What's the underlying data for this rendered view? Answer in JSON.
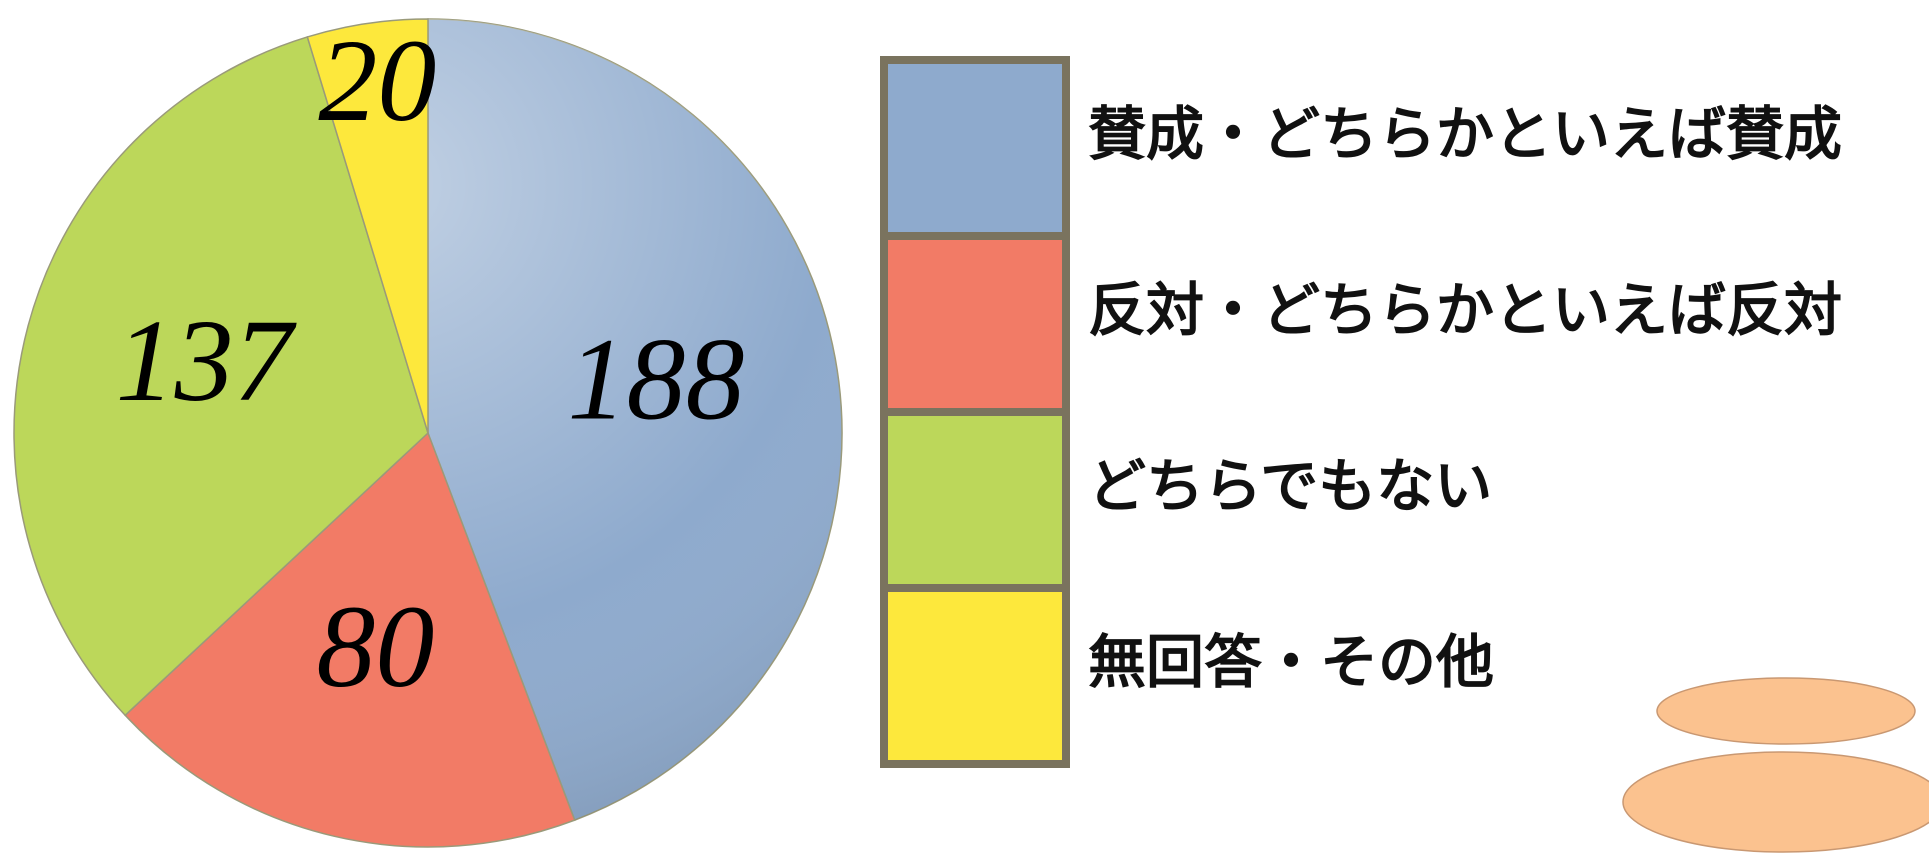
{
  "chart_data": {
    "type": "pie",
    "categories": [
      "賛成・どちらかといえば賛成",
      "反対・どちらかといえば反対",
      "どちらでもない",
      "無回答・その他"
    ],
    "values": [
      188,
      80,
      137,
      20
    ],
    "colors": [
      "#8eaacd",
      "#f27b66",
      "#bcd75a",
      "#fde83c"
    ],
    "legend": "right"
  }
}
